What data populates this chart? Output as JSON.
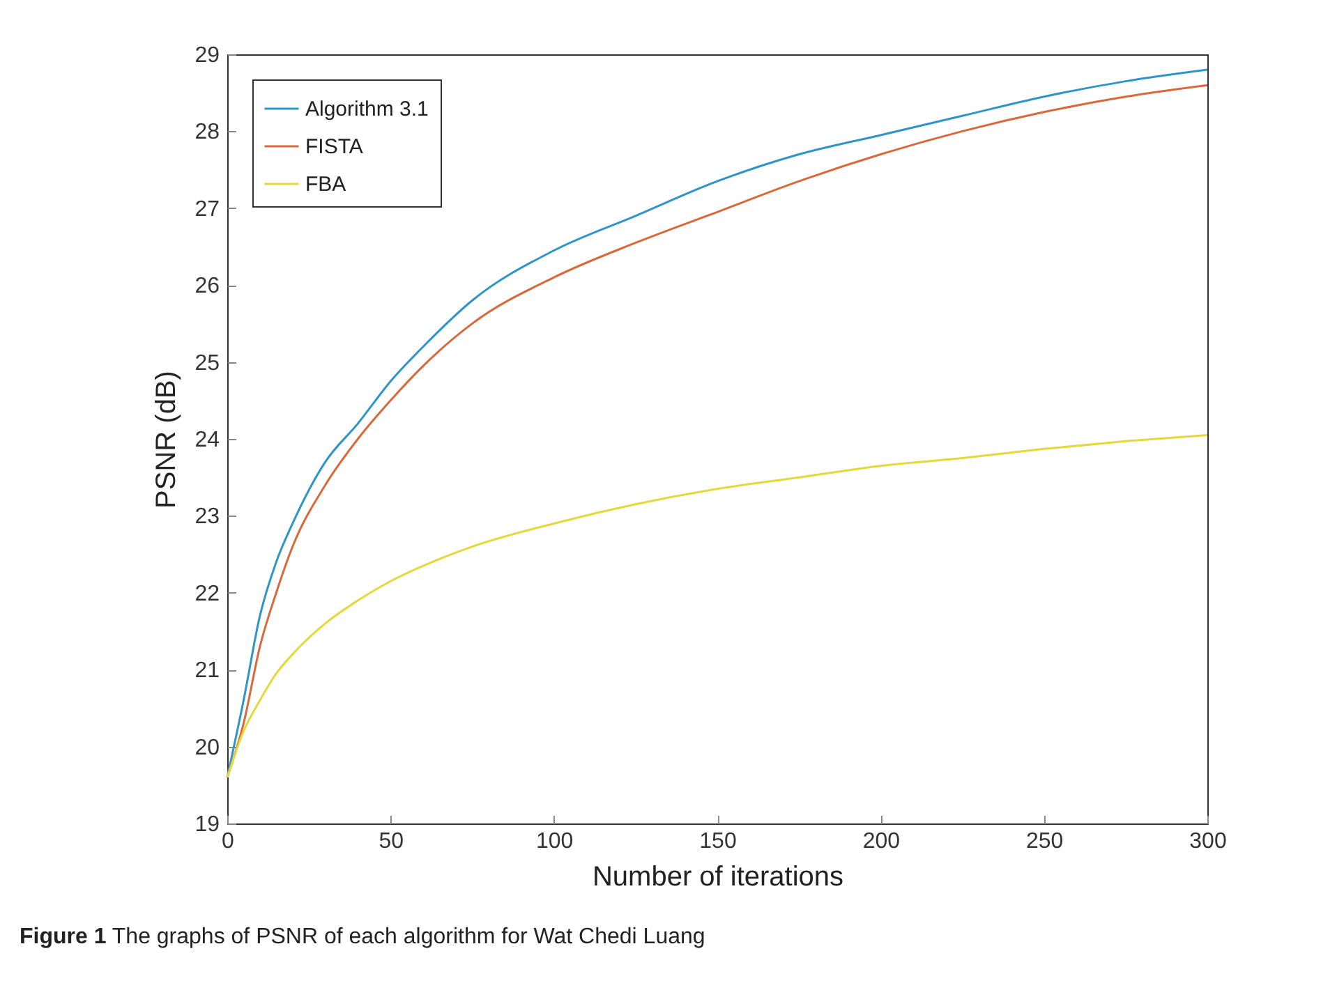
{
  "chart_data": {
    "type": "line",
    "xlabel": "Number of iterations",
    "ylabel": "PSNR (dB)",
    "x": [
      0,
      5,
      10,
      15,
      20,
      30,
      40,
      50,
      60,
      75,
      100,
      125,
      150,
      175,
      200,
      225,
      250,
      275,
      300
    ],
    "series": [
      {
        "name": "Algorithm 3.1",
        "color": "#2f95c8",
        "values": [
          19.6,
          20.6,
          21.7,
          22.4,
          22.9,
          23.7,
          24.2,
          24.75,
          25.2,
          25.8,
          26.45,
          26.9,
          27.35,
          27.7,
          27.95,
          28.2,
          28.45,
          28.65,
          28.8
        ]
      },
      {
        "name": "FISTA",
        "color": "#d9683a",
        "values": [
          19.6,
          20.3,
          21.3,
          22.0,
          22.6,
          23.4,
          24.0,
          24.5,
          24.95,
          25.5,
          26.1,
          26.55,
          26.95,
          27.35,
          27.7,
          28.0,
          28.25,
          28.45,
          28.6
        ]
      },
      {
        "name": "FBA",
        "color": "#e3d93a",
        "values": [
          19.6,
          20.2,
          20.6,
          20.95,
          21.2,
          21.6,
          21.9,
          22.15,
          22.35,
          22.6,
          22.9,
          23.15,
          23.35,
          23.5,
          23.65,
          23.75,
          23.87,
          23.97,
          24.05
        ]
      }
    ],
    "xlim": [
      0,
      300
    ],
    "xticks": [
      0,
      50,
      100,
      150,
      200,
      250,
      300
    ],
    "ylim": [
      19,
      29
    ],
    "yticks": [
      19,
      20,
      21,
      22,
      23,
      24,
      25,
      26,
      27,
      28,
      29
    ],
    "legend": "top left",
    "marker": "none",
    "line_style": "solid",
    "grid": false,
    "annotations": [
      "Figure 1  The graphs of PSNR of each algorithm for Wat Chedi Luang"
    ]
  }
}
